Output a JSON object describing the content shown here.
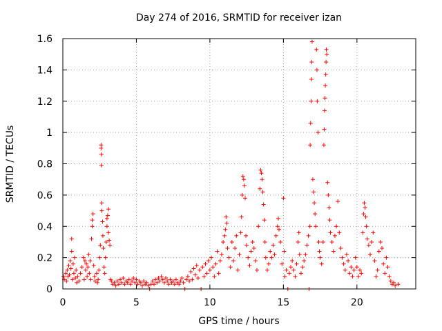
{
  "chart_data": {
    "type": "scatter",
    "title": "Day 274 of 2016, SRMTID for receiver izan",
    "xlabel": "GPS time / hours",
    "ylabel": "SRMTID / TECUs",
    "xlim": [
      0,
      24
    ],
    "ylim": [
      0,
      1.6
    ],
    "x_ticks": [
      0,
      5,
      10,
      15,
      20
    ],
    "y_ticks": [
      0,
      0.2,
      0.4,
      0.6,
      0.8,
      1,
      1.2,
      1.4,
      1.6
    ],
    "x_tick_labels": [
      "0",
      "5",
      "10",
      "15",
      "20"
    ],
    "y_tick_labels": [
      "0",
      "0.2",
      "0.4",
      "0.6",
      "0.8",
      "1",
      "1.2",
      "1.4",
      "1.6"
    ],
    "grid": true,
    "marker": "+",
    "color": "#ff0000",
    "series": [
      {
        "name": "SRMTID",
        "points": [
          [
            0.05,
            0.08
          ],
          [
            0.1,
            0.06
          ],
          [
            0.2,
            0.1
          ],
          [
            0.25,
            0.05
          ],
          [
            0.3,
            0.12
          ],
          [
            0.35,
            0.08
          ],
          [
            0.4,
            0.15
          ],
          [
            0.45,
            0.09
          ],
          [
            0.5,
            0.18
          ],
          [
            0.55,
            0.13
          ],
          [
            0.6,
            0.32
          ],
          [
            0.6,
            0.24
          ],
          [
            0.65,
            0.06
          ],
          [
            0.7,
            0.16
          ],
          [
            0.75,
            0.1
          ],
          [
            0.8,
            0.2
          ],
          [
            0.85,
            0.07
          ],
          [
            0.9,
            0.12
          ],
          [
            0.95,
            0.04
          ],
          [
            1.0,
            0.08
          ],
          [
            1.1,
            0.05
          ],
          [
            1.2,
            0.1
          ],
          [
            1.3,
            0.14
          ],
          [
            1.4,
            0.2
          ],
          [
            1.45,
            0.06
          ],
          [
            1.5,
            0.18
          ],
          [
            1.55,
            0.12
          ],
          [
            1.6,
            0.16
          ],
          [
            1.65,
            0.08
          ],
          [
            1.7,
            0.14
          ],
          [
            1.75,
            0.22
          ],
          [
            1.8,
            0.1
          ],
          [
            1.85,
            0.18
          ],
          [
            1.9,
            0.06
          ],
          [
            1.95,
            0.32
          ],
          [
            2.0,
            0.44
          ],
          [
            2.0,
            0.4
          ],
          [
            2.05,
            0.48
          ],
          [
            2.1,
            0.15
          ],
          [
            2.15,
            0.08
          ],
          [
            2.2,
            0.05
          ],
          [
            2.3,
            0.1
          ],
          [
            2.35,
            0.04
          ],
          [
            2.4,
            0.06
          ],
          [
            2.45,
            0.12
          ],
          [
            2.5,
            0.2
          ],
          [
            2.55,
            0.28
          ],
          [
            2.6,
            0.92
          ],
          [
            2.6,
            0.9
          ],
          [
            2.62,
            0.86
          ],
          [
            2.62,
            0.79
          ],
          [
            2.65,
            0.55
          ],
          [
            2.65,
            0.5
          ],
          [
            2.7,
            0.43
          ],
          [
            2.72,
            0.34
          ],
          [
            2.75,
            0.26
          ],
          [
            2.8,
            0.14
          ],
          [
            2.85,
            0.1
          ],
          [
            2.9,
            0.2
          ],
          [
            2.95,
            0.3
          ],
          [
            3.0,
            0.4
          ],
          [
            3.0,
            0.45
          ],
          [
            3.05,
            0.47
          ],
          [
            3.1,
            0.51
          ],
          [
            3.1,
            0.36
          ],
          [
            3.15,
            0.31
          ],
          [
            3.2,
            0.28
          ],
          [
            3.25,
            0.06
          ],
          [
            3.3,
            0.05
          ],
          [
            3.4,
            0.03
          ],
          [
            3.5,
            0.04
          ],
          [
            3.6,
            0.02
          ],
          [
            3.7,
            0.05
          ],
          [
            3.8,
            0.03
          ],
          [
            3.9,
            0.06
          ],
          [
            4.0,
            0.04
          ],
          [
            4.1,
            0.07
          ],
          [
            4.2,
            0.03
          ],
          [
            4.3,
            0.05
          ],
          [
            4.4,
            0.04
          ],
          [
            4.5,
            0.06
          ],
          [
            4.6,
            0.03
          ],
          [
            4.7,
            0.05
          ],
          [
            4.8,
            0.07
          ],
          [
            4.9,
            0.04
          ],
          [
            5.0,
            0.06
          ],
          [
            5.1,
            0.03
          ],
          [
            5.2,
            0.05
          ],
          [
            5.3,
            0.04
          ],
          [
            5.4,
            0.02
          ],
          [
            5.5,
            0.05
          ],
          [
            5.6,
            0.03
          ],
          [
            5.7,
            0.04
          ],
          [
            5.8,
            0.02
          ],
          [
            5.9,
            0.0
          ],
          [
            6.0,
            0.03
          ],
          [
            6.1,
            0.05
          ],
          [
            6.2,
            0.03
          ],
          [
            6.3,
            0.06
          ],
          [
            6.4,
            0.04
          ],
          [
            6.5,
            0.07
          ],
          [
            6.6,
            0.05
          ],
          [
            6.7,
            0.08
          ],
          [
            6.8,
            0.06
          ],
          [
            6.9,
            0.04
          ],
          [
            7.0,
            0.07
          ],
          [
            7.1,
            0.05
          ],
          [
            7.2,
            0.03
          ],
          [
            7.3,
            0.06
          ],
          [
            7.4,
            0.04
          ],
          [
            7.5,
            0.05
          ],
          [
            7.6,
            0.03
          ],
          [
            7.7,
            0.06
          ],
          [
            7.8,
            0.04
          ],
          [
            7.9,
            0.03
          ],
          [
            8.0,
            0.05
          ],
          [
            8.1,
            0.07
          ],
          [
            8.2,
            0.04
          ],
          [
            8.3,
            0.0
          ],
          [
            8.4,
            0.06
          ],
          [
            8.5,
            0.08
          ],
          [
            8.6,
            0.05
          ],
          [
            8.7,
            0.11
          ],
          [
            8.8,
            0.06
          ],
          [
            8.9,
            0.13
          ],
          [
            9.0,
            0.09
          ],
          [
            9.1,
            0.15
          ],
          [
            9.2,
            0.07
          ],
          [
            9.3,
            0.12
          ],
          [
            9.4,
            0.0
          ],
          [
            9.5,
            0.14
          ],
          [
            9.6,
            0.08
          ],
          [
            9.7,
            0.16
          ],
          [
            9.8,
            0.1
          ],
          [
            9.9,
            0.18
          ],
          [
            10.0,
            0.12
          ],
          [
            10.1,
            0.2
          ],
          [
            10.2,
            0.14
          ],
          [
            10.3,
            0.08
          ],
          [
            10.4,
            0.16
          ],
          [
            10.5,
            0.24
          ],
          [
            10.6,
            0.1
          ],
          [
            10.7,
            0.18
          ],
          [
            10.8,
            0.22
          ],
          [
            10.9,
            0.3
          ],
          [
            11.0,
            0.34
          ],
          [
            11.05,
            0.38
          ],
          [
            11.1,
            0.46
          ],
          [
            11.15,
            0.42
          ],
          [
            11.2,
            0.26
          ],
          [
            11.3,
            0.2
          ],
          [
            11.4,
            0.14
          ],
          [
            11.5,
            0.3
          ],
          [
            11.6,
            0.18
          ],
          [
            11.7,
            0.26
          ],
          [
            11.8,
            0.34
          ],
          [
            11.9,
            0.12
          ],
          [
            12.0,
            0.22
          ],
          [
            12.1,
            0.36
          ],
          [
            12.15,
            0.46
          ],
          [
            12.2,
            0.6
          ],
          [
            12.25,
            0.72
          ],
          [
            12.3,
            0.7
          ],
          [
            12.35,
            0.66
          ],
          [
            12.4,
            0.58
          ],
          [
            12.45,
            0.34
          ],
          [
            12.5,
            0.28
          ],
          [
            12.6,
            0.2
          ],
          [
            12.7,
            0.15
          ],
          [
            12.8,
            0.24
          ],
          [
            12.9,
            0.3
          ],
          [
            13.0,
            0.26
          ],
          [
            13.1,
            0.18
          ],
          [
            13.2,
            0.12
          ],
          [
            13.3,
            0.4
          ],
          [
            13.4,
            0.64
          ],
          [
            13.45,
            0.76
          ],
          [
            13.5,
            0.74
          ],
          [
            13.55,
            0.7
          ],
          [
            13.6,
            0.62
          ],
          [
            13.65,
            0.54
          ],
          [
            13.7,
            0.44
          ],
          [
            13.75,
            0.3
          ],
          [
            13.8,
            0.2
          ],
          [
            13.9,
            0.12
          ],
          [
            14.0,
            0.16
          ],
          [
            14.1,
            0.24
          ],
          [
            14.2,
            0.2
          ],
          [
            14.3,
            0.28
          ],
          [
            14.4,
            0.22
          ],
          [
            14.5,
            0.34
          ],
          [
            14.6,
            0.4
          ],
          [
            14.65,
            0.45
          ],
          [
            14.7,
            0.38
          ],
          [
            14.8,
            0.3
          ],
          [
            14.9,
            0.16
          ],
          [
            15.0,
            0.58
          ],
          [
            15.05,
            0.24
          ],
          [
            15.1,
            0.08
          ],
          [
            15.2,
            0.12
          ],
          [
            15.3,
            0.0
          ],
          [
            15.4,
            0.1
          ],
          [
            15.5,
            0.14
          ],
          [
            15.6,
            0.18
          ],
          [
            15.7,
            0.12
          ],
          [
            15.8,
            0.08
          ],
          [
            15.9,
            0.16
          ],
          [
            16.0,
            0.3
          ],
          [
            16.05,
            0.36
          ],
          [
            16.1,
            0.22
          ],
          [
            16.2,
            0.1
          ],
          [
            16.3,
            0.14
          ],
          [
            16.4,
            0.18
          ],
          [
            16.5,
            0.22
          ],
          [
            16.6,
            0.28
          ],
          [
            16.7,
            0.34
          ],
          [
            16.75,
            0.0
          ],
          [
            16.8,
            0.4
          ],
          [
            16.82,
            0.92
          ],
          [
            16.85,
            1.06
          ],
          [
            16.88,
            1.2
          ],
          [
            16.9,
            1.34
          ],
          [
            16.92,
            1.45
          ],
          [
            16.95,
            1.58
          ],
          [
            17.0,
            0.7
          ],
          [
            17.05,
            0.62
          ],
          [
            17.1,
            0.55
          ],
          [
            17.15,
            0.48
          ],
          [
            17.2,
            0.4
          ],
          [
            17.25,
            1.53
          ],
          [
            17.28,
            1.4
          ],
          [
            17.3,
            1.2
          ],
          [
            17.35,
            1.0
          ],
          [
            17.4,
            0.3
          ],
          [
            17.45,
            0.24
          ],
          [
            17.5,
            0.2
          ],
          [
            17.6,
            0.16
          ],
          [
            17.7,
            0.3
          ],
          [
            17.75,
            0.92
          ],
          [
            17.78,
            1.02
          ],
          [
            17.8,
            1.14
          ],
          [
            17.82,
            1.22
          ],
          [
            17.85,
            1.3
          ],
          [
            17.88,
            1.37
          ],
          [
            17.9,
            1.45
          ],
          [
            17.92,
            1.53
          ],
          [
            17.95,
            1.5
          ],
          [
            18.0,
            0.68
          ],
          [
            18.05,
            0.6
          ],
          [
            18.1,
            0.52
          ],
          [
            18.15,
            0.44
          ],
          [
            18.2,
            0.36
          ],
          [
            18.3,
            0.3
          ],
          [
            18.4,
            0.24
          ],
          [
            18.5,
            0.34
          ],
          [
            18.6,
            0.4
          ],
          [
            18.7,
            0.56
          ],
          [
            18.8,
            0.36
          ],
          [
            18.9,
            0.26
          ],
          [
            19.0,
            0.2
          ],
          [
            19.1,
            0.16
          ],
          [
            19.2,
            0.12
          ],
          [
            19.3,
            0.22
          ],
          [
            19.4,
            0.18
          ],
          [
            19.5,
            0.1
          ],
          [
            19.6,
            0.14
          ],
          [
            19.7,
            0.08
          ],
          [
            19.8,
            0.12
          ],
          [
            19.9,
            0.2
          ],
          [
            20.0,
            0.14
          ],
          [
            20.1,
            0.08
          ],
          [
            20.2,
            0.12
          ],
          [
            20.3,
            0.1
          ],
          [
            20.4,
            0.36
          ],
          [
            20.45,
            0.48
          ],
          [
            20.5,
            0.55
          ],
          [
            20.55,
            0.52
          ],
          [
            20.6,
            0.46
          ],
          [
            20.65,
            0.4
          ],
          [
            20.7,
            0.32
          ],
          [
            20.8,
            0.28
          ],
          [
            20.9,
            0.22
          ],
          [
            21.0,
            0.3
          ],
          [
            21.1,
            0.36
          ],
          [
            21.2,
            0.18
          ],
          [
            21.3,
            0.08
          ],
          [
            21.4,
            0.12
          ],
          [
            21.5,
            0.24
          ],
          [
            21.6,
            0.3
          ],
          [
            21.7,
            0.26
          ],
          [
            21.8,
            0.16
          ],
          [
            21.9,
            0.1
          ],
          [
            22.0,
            0.2
          ],
          [
            22.1,
            0.14
          ],
          [
            22.2,
            0.08
          ],
          [
            22.3,
            0.05
          ],
          [
            22.4,
            0.03
          ],
          [
            22.5,
            0.04
          ],
          [
            22.6,
            0.02
          ],
          [
            22.8,
            0.03
          ]
        ]
      }
    ]
  }
}
